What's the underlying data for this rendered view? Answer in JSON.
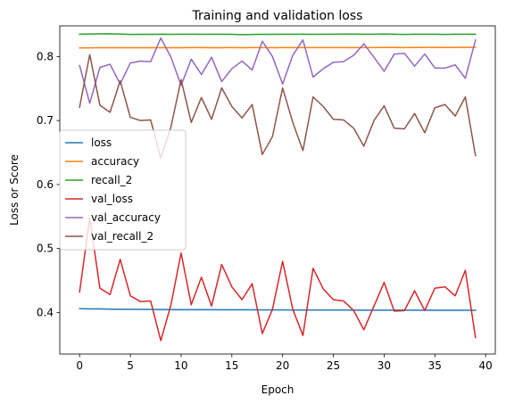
{
  "chart_data": {
    "type": "line",
    "title": "Training and validation loss",
    "xlabel": "Epoch",
    "ylabel": "Loss or Score",
    "xlim": [
      -1.95,
      40.95
    ],
    "ylim": [
      0.335,
      0.848
    ],
    "xticks": [
      0,
      5,
      10,
      15,
      20,
      25,
      30,
      35,
      40
    ],
    "yticks": [
      0.4,
      0.5,
      0.6,
      0.7,
      0.8
    ],
    "ytick_labels": [
      "0.4",
      "0.5",
      "0.6",
      "0.7",
      "0.8"
    ],
    "grid": false,
    "legend": "center-left",
    "x": [
      0,
      1,
      2,
      3,
      4,
      5,
      6,
      7,
      8,
      9,
      10,
      11,
      12,
      13,
      14,
      15,
      16,
      17,
      18,
      19,
      20,
      21,
      22,
      23,
      24,
      25,
      26,
      27,
      28,
      29,
      30,
      31,
      32,
      33,
      34,
      35,
      36,
      37,
      38,
      39
    ],
    "series": [
      {
        "name": "loss",
        "color": "#1f77b4",
        "values": [
          0.406,
          0.4055,
          0.4055,
          0.4052,
          0.405,
          0.405,
          0.4048,
          0.4048,
          0.4046,
          0.4046,
          0.4044,
          0.4044,
          0.4043,
          0.4043,
          0.4042,
          0.4042,
          0.4041,
          0.4041,
          0.404,
          0.404,
          0.404,
          0.4039,
          0.4039,
          0.4039,
          0.4038,
          0.4038,
          0.4038,
          0.4037,
          0.4037,
          0.4037,
          0.4037,
          0.4036,
          0.4036,
          0.4036,
          0.4036,
          0.4035,
          0.4035,
          0.4035,
          0.4035,
          0.4035
        ]
      },
      {
        "name": "accuracy",
        "color": "#ff7f0e",
        "values": [
          0.8135,
          0.8137,
          0.8139,
          0.8139,
          0.8138,
          0.8138,
          0.8139,
          0.8139,
          0.8138,
          0.8138,
          0.8139,
          0.814,
          0.814,
          0.8139,
          0.8139,
          0.814,
          0.8139,
          0.814,
          0.814,
          0.8139,
          0.814,
          0.814,
          0.8141,
          0.8141,
          0.814,
          0.8141,
          0.8141,
          0.8141,
          0.8141,
          0.8141,
          0.8142,
          0.8142,
          0.8141,
          0.8142,
          0.8142,
          0.8143,
          0.8142,
          0.8143,
          0.8143,
          0.8144
        ]
      },
      {
        "name": "recall_2",
        "color": "#2ca02c",
        "values": [
          0.835,
          0.8352,
          0.8355,
          0.8356,
          0.8353,
          0.8345,
          0.8348,
          0.8347,
          0.835,
          0.8347,
          0.835,
          0.8349,
          0.8348,
          0.835,
          0.835,
          0.8347,
          0.8343,
          0.8345,
          0.8347,
          0.8348,
          0.8349,
          0.835,
          0.835,
          0.8348,
          0.835,
          0.835,
          0.8351,
          0.8351,
          0.835,
          0.835,
          0.8352,
          0.835,
          0.8346,
          0.835,
          0.8349,
          0.8349,
          0.8346,
          0.8349,
          0.835,
          0.835
        ]
      },
      {
        "name": "val_loss",
        "color": "#d62728",
        "values": [
          0.432,
          0.548,
          0.438,
          0.428,
          0.483,
          0.426,
          0.417,
          0.418,
          0.356,
          0.412,
          0.493,
          0.412,
          0.455,
          0.41,
          0.475,
          0.44,
          0.42,
          0.445,
          0.367,
          0.405,
          0.48,
          0.405,
          0.364,
          0.469,
          0.437,
          0.42,
          0.418,
          0.403,
          0.373,
          0.41,
          0.447,
          0.402,
          0.403,
          0.434,
          0.403,
          0.438,
          0.44,
          0.426,
          0.466,
          0.361
        ]
      },
      {
        "name": "val_accuracy",
        "color": "#9467bd",
        "values": [
          0.786,
          0.727,
          0.783,
          0.788,
          0.757,
          0.79,
          0.793,
          0.792,
          0.829,
          0.799,
          0.755,
          0.796,
          0.772,
          0.799,
          0.761,
          0.781,
          0.793,
          0.779,
          0.824,
          0.8,
          0.757,
          0.802,
          0.826,
          0.768,
          0.781,
          0.791,
          0.792,
          0.802,
          0.82,
          0.799,
          0.777,
          0.804,
          0.805,
          0.785,
          0.804,
          0.782,
          0.782,
          0.787,
          0.766,
          0.826
        ]
      },
      {
        "name": "val_recall_2",
        "color": "#8c564b",
        "values": [
          0.721,
          0.803,
          0.724,
          0.713,
          0.762,
          0.705,
          0.7,
          0.701,
          0.641,
          0.69,
          0.764,
          0.697,
          0.736,
          0.702,
          0.751,
          0.722,
          0.704,
          0.725,
          0.647,
          0.675,
          0.751,
          0.697,
          0.653,
          0.737,
          0.722,
          0.702,
          0.701,
          0.688,
          0.66,
          0.7,
          0.723,
          0.688,
          0.687,
          0.711,
          0.681,
          0.72,
          0.725,
          0.707,
          0.737,
          0.645
        ]
      }
    ]
  }
}
